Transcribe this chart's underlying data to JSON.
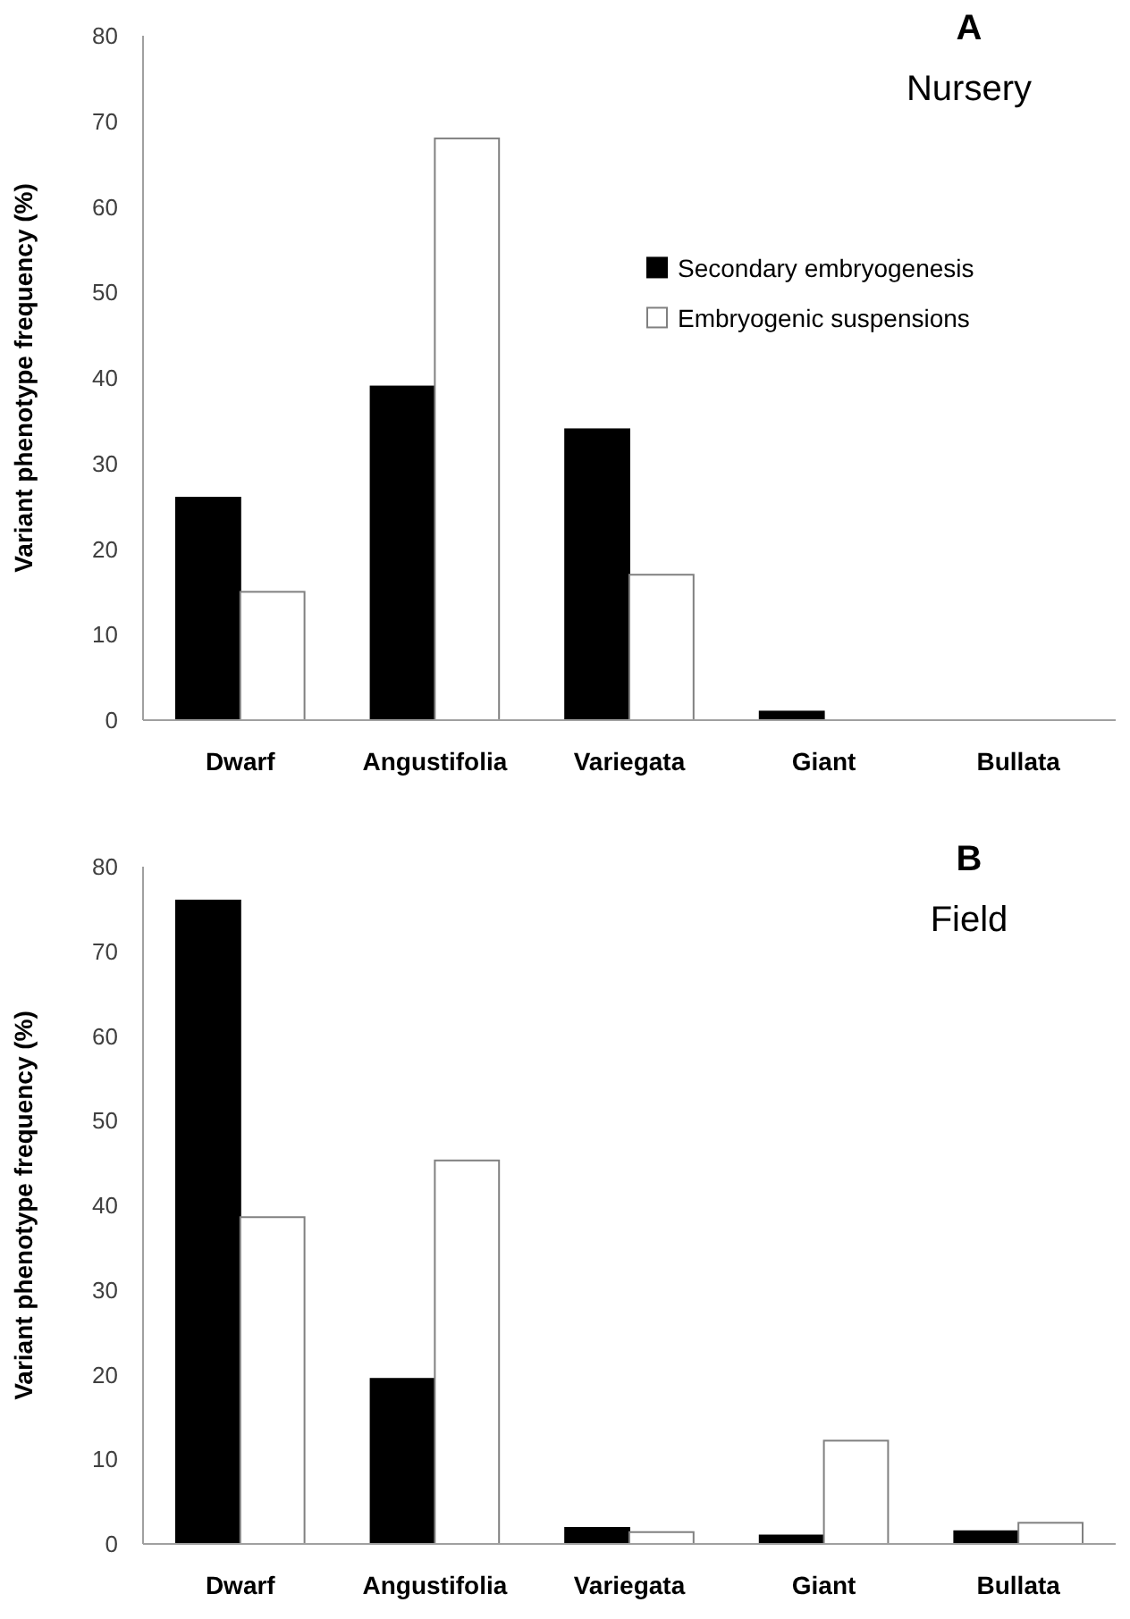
{
  "chart_data": [
    {
      "type": "bar",
      "title": "A",
      "subtitle": "Nursery",
      "ylabel": "Variant phenotype frequency (%)",
      "categories": [
        "Dwarf",
        "Angustifolia",
        "Variegata",
        "Giant",
        "Bullata"
      ],
      "series": [
        {
          "name": "Secondary embryogenesis",
          "color": "#000000",
          "values": [
            26,
            39,
            34,
            1,
            0
          ]
        },
        {
          "name": "Embryogenic suspensions",
          "color": "#ffffff",
          "values": [
            15,
            68,
            17,
            0,
            0
          ]
        }
      ],
      "ylim": [
        0,
        80
      ],
      "yticks": [
        0,
        10,
        20,
        30,
        40,
        50,
        60,
        70,
        80
      ],
      "legend": "right"
    },
    {
      "type": "bar",
      "title": "B",
      "subtitle": "Field",
      "ylabel": "Variant phenotype frequency (%)",
      "categories": [
        "Dwarf",
        "Angustifolia",
        "Variegata",
        "Giant",
        "Bullata"
      ],
      "series": [
        {
          "color": "#000000",
          "values": [
            76,
            19.5,
            1.9,
            1.0,
            1.5
          ]
        },
        {
          "color": "#ffffff",
          "values": [
            38.6,
            45.3,
            1.4,
            12.2,
            2.5
          ]
        }
      ],
      "ylim": [
        0,
        80
      ],
      "yticks": [
        0,
        10,
        20,
        30,
        40,
        50,
        60,
        70,
        80
      ]
    }
  ]
}
